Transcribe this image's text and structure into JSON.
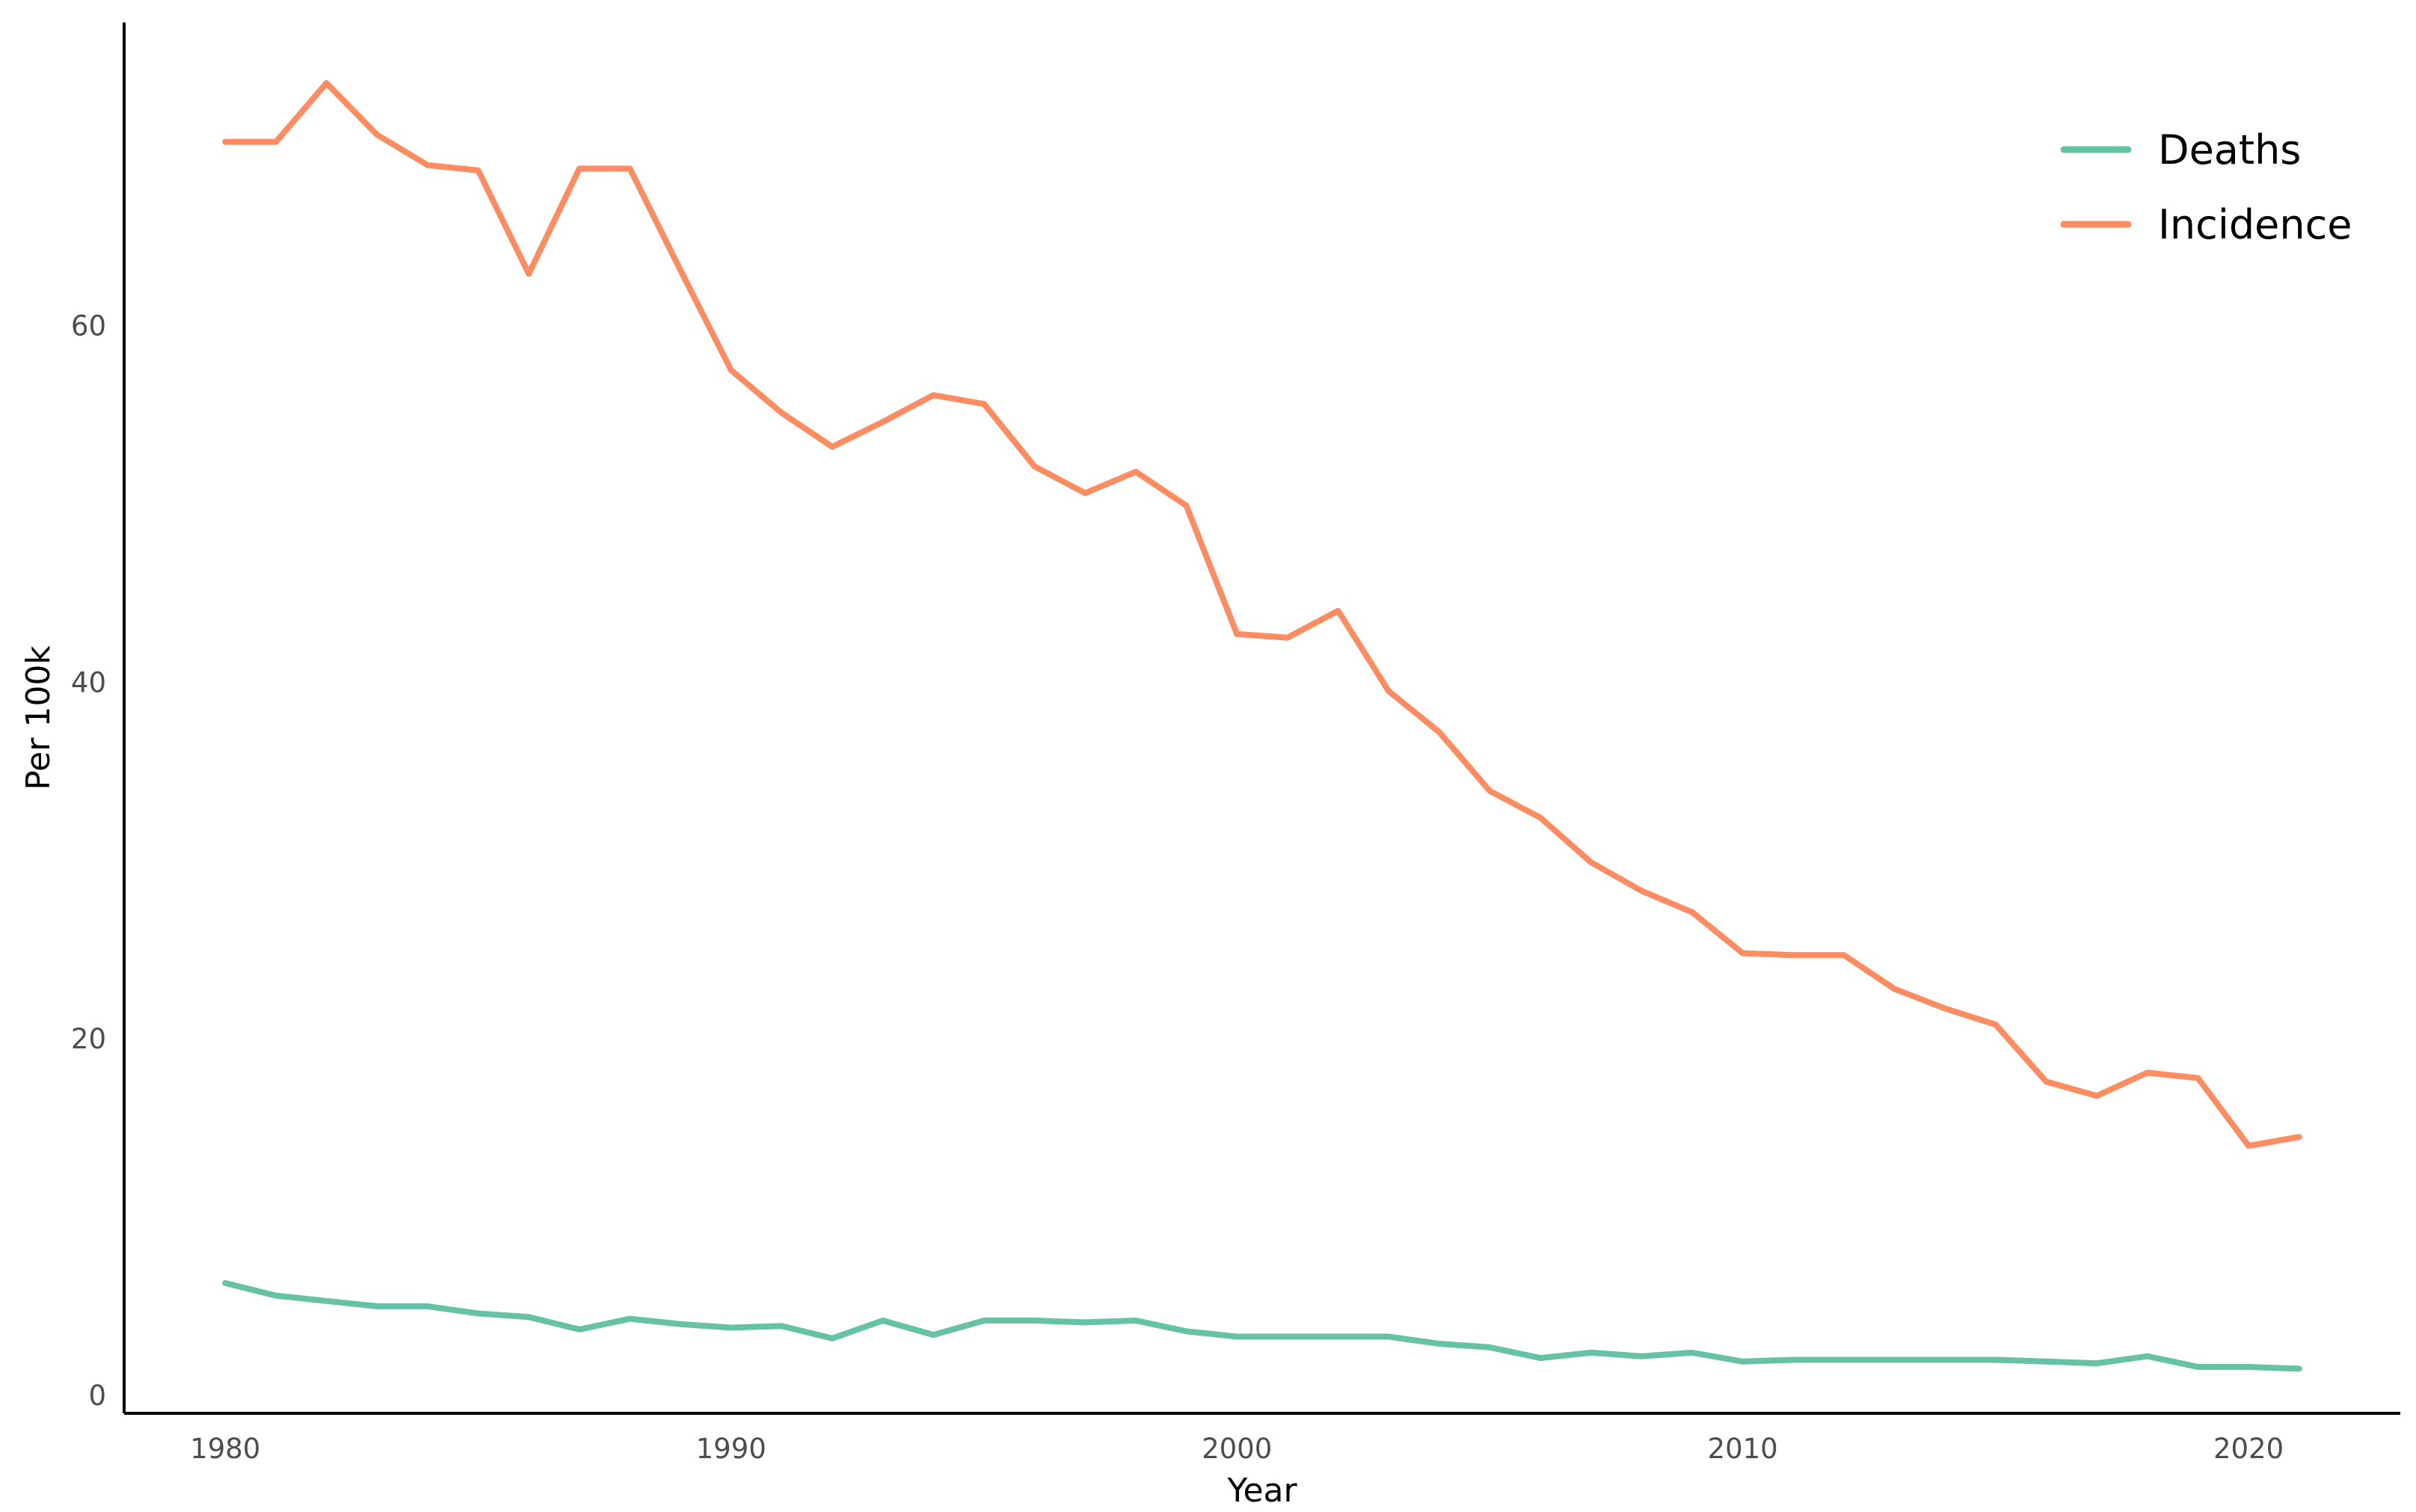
{
  "chart_data": {
    "type": "line",
    "title": "",
    "xlabel": "Year",
    "ylabel": "Per 100k",
    "xlim": [
      1978,
      2023
    ],
    "ylim": [
      -1,
      77
    ],
    "x_ticks": [
      1980,
      1990,
      2000,
      2010,
      2020
    ],
    "y_ticks": [
      0,
      20,
      40,
      60
    ],
    "grid": false,
    "legend_position": "top-right",
    "x": [
      1980,
      1981,
      1982,
      1983,
      1984,
      1985,
      1986,
      1987,
      1988,
      1989,
      1990,
      1991,
      1992,
      1993,
      1994,
      1995,
      1996,
      1997,
      1998,
      1999,
      2000,
      2001,
      2002,
      2003,
      2004,
      2005,
      2006,
      2007,
      2008,
      2009,
      2010,
      2011,
      2012,
      2013,
      2014,
      2015,
      2016,
      2017,
      2018,
      2019,
      2020,
      2021
    ],
    "series": [
      {
        "name": "Deaths",
        "color": "#66c2a5",
        "values": [
          6.3,
          5.6,
          5.3,
          5.0,
          5.0,
          4.6,
          4.4,
          3.7,
          4.3,
          4.0,
          3.8,
          3.9,
          3.2,
          4.2,
          3.4,
          4.2,
          4.2,
          4.1,
          4.2,
          3.6,
          3.3,
          3.3,
          3.3,
          3.3,
          2.9,
          2.7,
          2.1,
          2.4,
          2.2,
          2.4,
          1.9,
          2.0,
          2.0,
          2.0,
          2.0,
          2.0,
          1.9,
          1.8,
          2.2,
          1.6,
          1.6,
          1.5
        ]
      },
      {
        "name": "Incidence",
        "color": "#fc8d62",
        "values": [
          70.3,
          70.3,
          73.6,
          70.7,
          69.0,
          68.7,
          62.9,
          68.8,
          68.8,
          63.1,
          57.5,
          55.1,
          53.2,
          54.6,
          56.1,
          55.6,
          52.1,
          50.6,
          51.8,
          49.9,
          42.7,
          42.5,
          44.0,
          39.5,
          37.2,
          33.9,
          32.4,
          29.9,
          28.3,
          27.1,
          24.8,
          24.7,
          24.7,
          22.8,
          21.7,
          20.8,
          17.6,
          16.8,
          18.1,
          17.8,
          14.0,
          14.5
        ]
      }
    ]
  }
}
